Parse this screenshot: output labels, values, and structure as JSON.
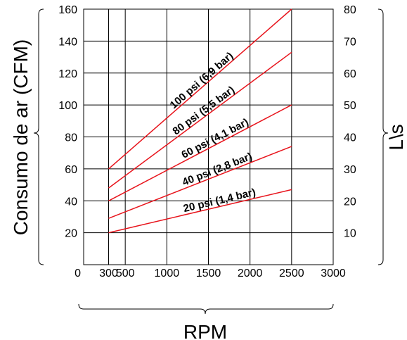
{
  "chart_data": {
    "type": "line",
    "xlabel": "RPM",
    "ylabel_left": "Consumo de ar (CFM)",
    "ylabel_right": "L\\s",
    "xlim": [
      0,
      3000
    ],
    "ylim": [
      0,
      160
    ],
    "ylim_right": [
      0,
      80
    ],
    "x_ticks": [
      "0",
      "300",
      "500",
      "1000",
      "1500",
      "2000",
      "2500",
      "3000"
    ],
    "y_ticks": [
      "20",
      "40",
      "60",
      "80",
      "100",
      "120",
      "140",
      "160"
    ],
    "y_right_ticks": [
      "10",
      "20",
      "30",
      "40",
      "50",
      "60",
      "70",
      "80"
    ],
    "grid": true,
    "line_color": "#e8141c",
    "series": [
      {
        "name": "20 psi (1,4 bar)",
        "x": [
          300,
          2500
        ],
        "y": [
          20,
          47
        ]
      },
      {
        "name": "40 psi (2,8 bar)",
        "x": [
          300,
          2500
        ],
        "y": [
          29,
          74
        ]
      },
      {
        "name": "60 psi (4,1 bar)",
        "x": [
          300,
          2500
        ],
        "y": [
          40,
          100
        ]
      },
      {
        "name": "80 psi (5,5 bar)",
        "x": [
          300,
          2500
        ],
        "y": [
          48,
          133
        ]
      },
      {
        "name": "100 psi (6,9 bar)",
        "x": [
          300,
          2500
        ],
        "y": [
          60,
          160
        ]
      }
    ]
  }
}
